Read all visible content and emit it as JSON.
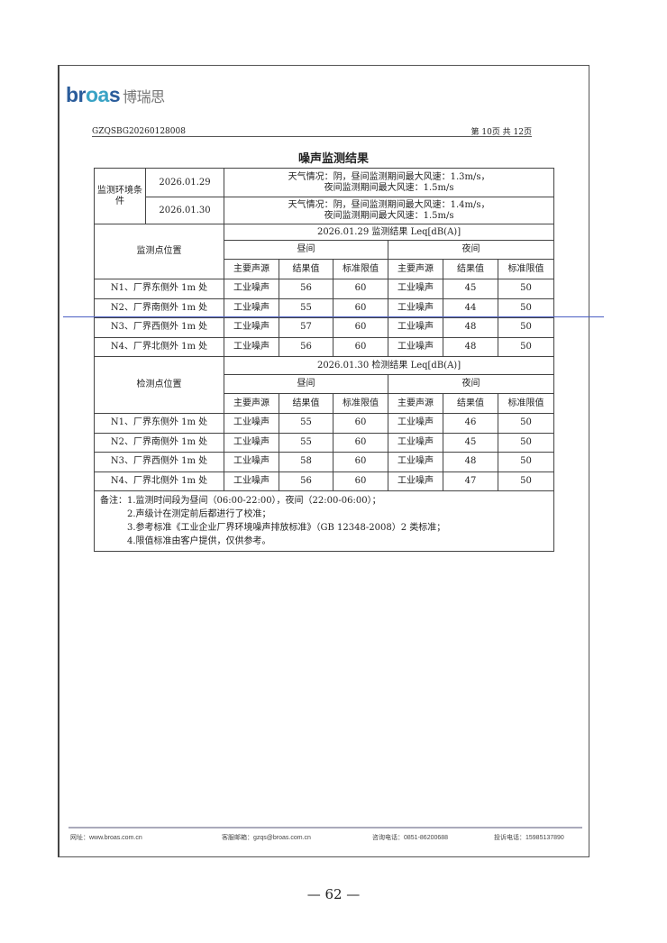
{
  "header": {
    "logo_en": "broas",
    "logo_cn": "博瑞思",
    "doc_no": "GZQSBG20260128008",
    "page": "第 10页 共 12页"
  },
  "title": "噪声监测结果",
  "env": {
    "label": "监测环境条件",
    "rows": [
      {
        "date": "2026.01.29",
        "line1": "天气情况：阴，昼间监测期间最大风速：1.3m/s，",
        "line2": "夜间监测期间最大风速：1.5m/s"
      },
      {
        "date": "2026.01.30",
        "line1": "天气情况：阴，昼间监测期间最大风速：1.4m/s，",
        "line2": "夜间监测期间最大风速：1.5m/s"
      }
    ]
  },
  "blocks": [
    {
      "pos_label": "监测点位置",
      "date_title": "2026.01.29 监测结果 Leq[dB(A)]",
      "day": "昼间",
      "night": "夜间",
      "cols": [
        "主要声源",
        "结果值",
        "标准限值",
        "主要声源",
        "结果值",
        "标准限值"
      ],
      "rows": [
        [
          "N1、厂界东侧外 1m 处",
          "工业噪声",
          "56",
          "60",
          "工业噪声",
          "45",
          "50"
        ],
        [
          "N2、厂界南侧外 1m 处",
          "工业噪声",
          "55",
          "60",
          "工业噪声",
          "44",
          "50"
        ],
        [
          "N3、厂界西侧外 1m 处",
          "工业噪声",
          "57",
          "60",
          "工业噪声",
          "48",
          "50"
        ],
        [
          "N4、厂界北侧外 1m 处",
          "工业噪声",
          "56",
          "60",
          "工业噪声",
          "48",
          "50"
        ]
      ]
    },
    {
      "pos_label": "检测点位置",
      "date_title": "2026.01.30 检测结果 Leq[dB(A)]",
      "day": "昼间",
      "night": "夜间",
      "cols": [
        "主要声源",
        "结果值",
        "标准限值",
        "主要声源",
        "结果值",
        "标准限值"
      ],
      "rows": [
        [
          "N1、厂界东侧外 1m 处",
          "工业噪声",
          "55",
          "60",
          "工业噪声",
          "46",
          "50"
        ],
        [
          "N2、厂界南侧外 1m 处",
          "工业噪声",
          "55",
          "60",
          "工业噪声",
          "45",
          "50"
        ],
        [
          "N3、厂界西侧外 1m 处",
          "工业噪声",
          "58",
          "60",
          "工业噪声",
          "48",
          "50"
        ],
        [
          "N4、厂界北侧外 1m 处",
          "工业噪声",
          "56",
          "60",
          "工业噪声",
          "47",
          "50"
        ]
      ]
    }
  ],
  "remarks": [
    "备注：1.监测时间段为昼间（06:00-22:00），夜间（22:00-06:00）；",
    "2.声级计在测定前后都进行了校准；",
    "3.参考标准《工业企业厂界环境噪声排放标准》（GB 12348-2008）2 类标准；",
    "4.限值标准由客户提供，仅供参考。"
  ],
  "footer": {
    "website": "网址：www.broas.com.cn",
    "email": "客服邮箱：gzqs@broas.com.cn",
    "consult": "咨询电话：0851-86200688",
    "complaint": "投诉电话：15985137890"
  },
  "page_number": "— 62 —"
}
